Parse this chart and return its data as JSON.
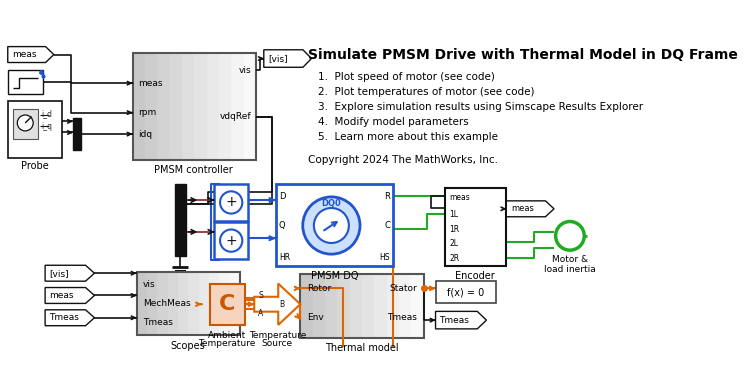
{
  "title": "Simulate PMSM Drive with Thermal Model in DQ Frame",
  "items": [
    "1.  Plot speed of motor (see code)",
    "2.  Plot temperatures of motor (see code)",
    "3.  Explore simulation results using Simscape Results Explorer",
    "4.  Modify model parameters",
    "5.  Learn more about this example"
  ],
  "copyright": "Copyright 2024 The MathWorks, Inc.",
  "bg": "#ffffff",
  "blue": "#2255cc",
  "green": "#22aa22",
  "orange": "#dd6600",
  "dark": "#111111",
  "lgray": "#e0e0e0",
  "mgray": "#c8c8c8",
  "amb_fill": "#f5d5c0",
  "amb_edge": "#cc5500"
}
